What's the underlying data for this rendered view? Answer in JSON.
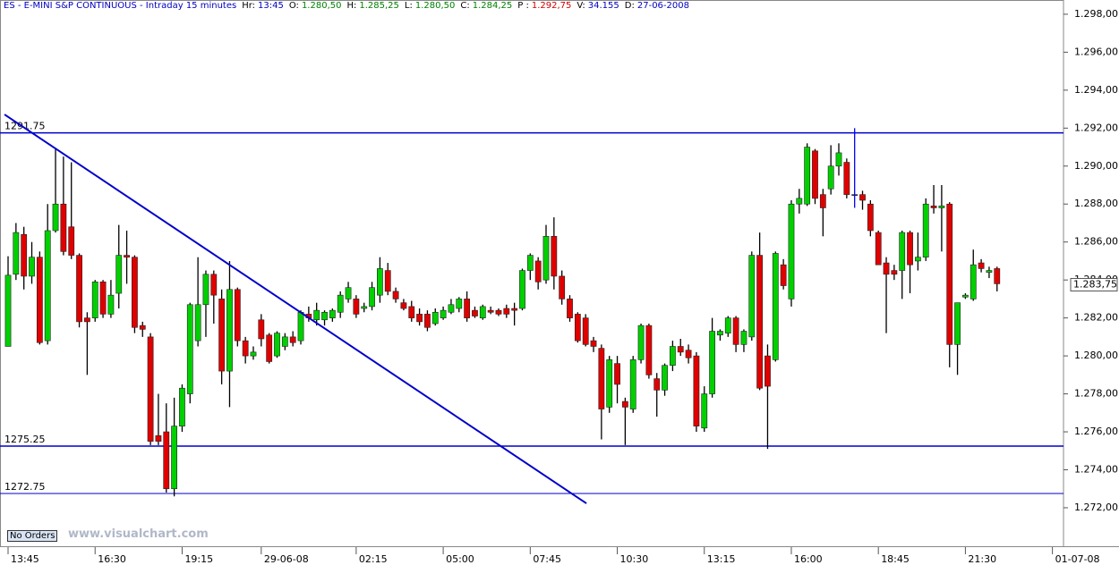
{
  "header": {
    "title": "ES - E-MINI S&P CONTINUOUS - Intraday 15 minutes",
    "fields": [
      {
        "label": "Hr:",
        "value": "13:45"
      },
      {
        "label": "O:",
        "value": "1.280,50"
      },
      {
        "label": "H:",
        "value": "1.285,25"
      },
      {
        "label": "L:",
        "value": "1.280,50"
      },
      {
        "label": "C:",
        "value": "1.284,25"
      },
      {
        "label": "P :",
        "value": "1.292,75"
      },
      {
        "label": "V:",
        "value": "34.155"
      },
      {
        "label": "D:",
        "value": "27-06-2008"
      }
    ]
  },
  "button": "No Orders",
  "watermark": "www.visualchart.com",
  "chart_data": {
    "type": "candlestick",
    "ohlc": [
      [
        1280.5,
        1285.25,
        1280.5,
        1284.25
      ],
      [
        1284.3,
        1287,
        1284,
        1286.5
      ],
      [
        1286.4,
        1286.8,
        1283.5,
        1284.2
      ],
      [
        1284.2,
        1286,
        1283.8,
        1285.2
      ],
      [
        1285.2,
        1285.5,
        1280.6,
        1280.7
      ],
      [
        1280.8,
        1288,
        1280.6,
        1286.6
      ],
      [
        1286.6,
        1290.9,
        1286.5,
        1288
      ],
      [
        1288,
        1290.5,
        1285.3,
        1285.5
      ],
      [
        1286.8,
        1290.2,
        1285.1,
        1285.3
      ],
      [
        1285.3,
        1285.4,
        1281.5,
        1281.8
      ],
      [
        1282,
        1282.3,
        1279,
        1281.8
      ],
      [
        1282,
        1284,
        1281.8,
        1283.9
      ],
      [
        1283.9,
        1284,
        1282,
        1282.2
      ],
      [
        1282.2,
        1284,
        1282,
        1283.2
      ],
      [
        1283.3,
        1286.9,
        1282.5,
        1285.3
      ],
      [
        1285.3,
        1286.6,
        1283.8,
        1285.2
      ],
      [
        1285.2,
        1285.3,
        1281.2,
        1281.5
      ],
      [
        1281.6,
        1281.8,
        1281,
        1281.4
      ],
      [
        1281,
        1281.2,
        1275.3,
        1275.5
      ],
      [
        1275.8,
        1278,
        1275.3,
        1275.5
      ],
      [
        1276,
        1277.5,
        1272.8,
        1273
      ],
      [
        1273,
        1277.8,
        1272.6,
        1276.3
      ],
      [
        1276.3,
        1278.5,
        1276,
        1278.3
      ],
      [
        1278,
        1282.8,
        1277.5,
        1282.7
      ],
      [
        1280.8,
        1285.2,
        1280.5,
        1282.7
      ],
      [
        1282.7,
        1284.5,
        1281,
        1284.3
      ],
      [
        1284.3,
        1284.5,
        1281.7,
        1283.2
      ],
      [
        1283,
        1283.5,
        1278.5,
        1279.2
      ],
      [
        1279.2,
        1285,
        1277.3,
        1283.5
      ],
      [
        1283.5,
        1283.6,
        1280.5,
        1280.8
      ],
      [
        1280.8,
        1281,
        1279.6,
        1280
      ],
      [
        1280,
        1280.5,
        1279.8,
        1280.2
      ],
      [
        1281.9,
        1282.2,
        1280.5,
        1280.9
      ],
      [
        1281.1,
        1281.2,
        1279.6,
        1279.7
      ],
      [
        1280,
        1281.3,
        1279.9,
        1281.2
      ],
      [
        1280.5,
        1281.2,
        1280.3,
        1281
      ],
      [
        1281,
        1281.3,
        1280.5,
        1280.7
      ],
      [
        1280.8,
        1282.4,
        1280.6,
        1282.3
      ],
      [
        1282.2,
        1282.6,
        1281.8,
        1282
      ],
      [
        1281.9,
        1282.8,
        1281.6,
        1282.4
      ],
      [
        1281.9,
        1282.4,
        1281.6,
        1282.3
      ],
      [
        1282,
        1282.5,
        1281.8,
        1282.4
      ],
      [
        1282.3,
        1283.4,
        1282,
        1283.2
      ],
      [
        1283,
        1283.9,
        1282.8,
        1283.6
      ],
      [
        1283,
        1283.2,
        1282,
        1282.2
      ],
      [
        1282.5,
        1282.8,
        1282.3,
        1282.6
      ],
      [
        1282.6,
        1283.9,
        1282.4,
        1283.6
      ],
      [
        1283.2,
        1285.2,
        1282.8,
        1284.6
      ],
      [
        1284.5,
        1284.9,
        1283.2,
        1283.4
      ],
      [
        1283.4,
        1283.6,
        1282.8,
        1283
      ],
      [
        1282.8,
        1283,
        1282.4,
        1282.5
      ],
      [
        1282.6,
        1282.9,
        1281.8,
        1282
      ],
      [
        1282.2,
        1282.5,
        1281.6,
        1281.8
      ],
      [
        1282.2,
        1282.4,
        1281.3,
        1281.5
      ],
      [
        1281.7,
        1282.5,
        1281.6,
        1282.3
      ],
      [
        1282,
        1282.6,
        1281.9,
        1282.4
      ],
      [
        1282.3,
        1283,
        1282.2,
        1282.7
      ],
      [
        1282.5,
        1283.1,
        1282.3,
        1283
      ],
      [
        1283,
        1283.4,
        1281.8,
        1282
      ],
      [
        1282.4,
        1282.6,
        1282,
        1282.1
      ],
      [
        1282,
        1282.7,
        1281.9,
        1282.6
      ],
      [
        1282.4,
        1282.6,
        1282.2,
        1282.3
      ],
      [
        1282.4,
        1282.5,
        1282.1,
        1282.2
      ],
      [
        1282.5,
        1282.7,
        1282,
        1282.2
      ],
      [
        1282.5,
        1282.8,
        1281.6,
        1282.4
      ],
      [
        1282.5,
        1284.6,
        1282.4,
        1284.5
      ],
      [
        1284.5,
        1285.4,
        1284,
        1285.3
      ],
      [
        1285,
        1285.2,
        1283.5,
        1283.9
      ],
      [
        1284,
        1286.9,
        1283.8,
        1286.3
      ],
      [
        1286.3,
        1287.3,
        1283.5,
        1284.2
      ],
      [
        1284.2,
        1284.5,
        1282.7,
        1283
      ],
      [
        1283,
        1283.2,
        1281.8,
        1282
      ],
      [
        1282.2,
        1282.3,
        1280.7,
        1280.8
      ],
      [
        1282,
        1282.2,
        1280.5,
        1280.6
      ],
      [
        1280.8,
        1281,
        1280.2,
        1280.5
      ],
      [
        1280.4,
        1280.6,
        1275.6,
        1277.2
      ],
      [
        1277.3,
        1280,
        1277,
        1279.8
      ],
      [
        1279.6,
        1280,
        1277.5,
        1278.5
      ],
      [
        1277.6,
        1277.8,
        1275.3,
        1277.3
      ],
      [
        1277.2,
        1280,
        1277,
        1279.8
      ],
      [
        1279.8,
        1281.7,
        1279.6,
        1281.6
      ],
      [
        1281.6,
        1281.7,
        1278.8,
        1279
      ],
      [
        1278.8,
        1279.1,
        1276.8,
        1278.2
      ],
      [
        1278.2,
        1279.6,
        1277.9,
        1279.5
      ],
      [
        1279.5,
        1280.8,
        1279.2,
        1280.5
      ],
      [
        1280.5,
        1280.9,
        1280,
        1280.2
      ],
      [
        1280.3,
        1280.6,
        1279.6,
        1279.9
      ],
      [
        1280,
        1280.2,
        1276,
        1276.3
      ],
      [
        1276.2,
        1278.4,
        1276,
        1278
      ],
      [
        1278,
        1282,
        1277.8,
        1281.3
      ],
      [
        1281.1,
        1281.4,
        1280.8,
        1281.3
      ],
      [
        1281.2,
        1282.1,
        1281,
        1282
      ],
      [
        1282,
        1282.1,
        1280.2,
        1280.6
      ],
      [
        1280.6,
        1281.4,
        1280.2,
        1281.3
      ],
      [
        1281,
        1285.5,
        1280.8,
        1285.3
      ],
      [
        1285.3,
        1286.5,
        1278.2,
        1278.3
      ],
      [
        1280,
        1280.6,
        1275.1,
        1278.4
      ],
      [
        1279.8,
        1285.5,
        1279.7,
        1285.4
      ],
      [
        1284.8,
        1285.1,
        1283.5,
        1283.7
      ],
      [
        1283,
        1288.2,
        1282.6,
        1288
      ],
      [
        1288,
        1288.8,
        1287.5,
        1288.3
      ],
      [
        1288,
        1291.2,
        1287.9,
        1291
      ],
      [
        1290.8,
        1290.9,
        1288,
        1288.3
      ],
      [
        1288.5,
        1288.8,
        1286.3,
        1287.8
      ],
      [
        1288.8,
        1291.1,
        1288.5,
        1290
      ],
      [
        1290,
        1291.2,
        1289.5,
        1290.7
      ],
      [
        1290.2,
        1290.4,
        1288.3,
        1288.5
      ],
      [
        1288.5,
        1292,
        1287.8,
        1288.5
      ],
      [
        1288.5,
        1288.7,
        1287.7,
        1288.2
      ],
      [
        1288,
        1288.2,
        1286.3,
        1286.6
      ],
      [
        1286.5,
        1286.6,
        1284.8,
        1284.8
      ],
      [
        1284.9,
        1285.2,
        1281.2,
        1284.3
      ],
      [
        1284.5,
        1284.8,
        1284,
        1284.3
      ],
      [
        1284.5,
        1286.6,
        1283,
        1286.5
      ],
      [
        1286.5,
        1286.6,
        1283.3,
        1284.8
      ],
      [
        1285,
        1286.5,
        1284.5,
        1285.2
      ],
      [
        1285.2,
        1288.3,
        1285,
        1288
      ],
      [
        1287.9,
        1289,
        1287.5,
        1287.8
      ],
      [
        1287.8,
        1289,
        1285.5,
        1287.9
      ],
      [
        1288,
        1288.1,
        1279.4,
        1280.6
      ],
      [
        1280.6,
        1282.8,
        1279,
        1282.8
      ],
      [
        1283.1,
        1283.3,
        1283,
        1283.2
      ],
      [
        1283,
        1285.6,
        1282.9,
        1284.8
      ],
      [
        1284.9,
        1285.1,
        1284.4,
        1284.6
      ],
      [
        1284.4,
        1284.7,
        1284.1,
        1284.5
      ],
      [
        1284.6,
        1284.7,
        1283.4,
        1283.8
      ]
    ],
    "up_color": "#00d000",
    "down_color": "#e00000",
    "flat_color": "#0000ff",
    "hlines": [
      1291.75,
      1275.25,
      1272.75
    ],
    "line_color": "#0000cc",
    "trendline": {
      "x": [
        -0.45,
        73.1
      ],
      "y": [
        1292.72,
        1272.23
      ]
    },
    "last_price": {
      "value": 1283.75,
      "label": "1.283,75"
    },
    "xlim": [
      -1.02,
      133.4
    ],
    "ylim": [
      1270.02,
      1298.75
    ],
    "xticks": [
      {
        "value": 0,
        "label": "13:45"
      },
      {
        "value": 11,
        "label": "16:30"
      },
      {
        "value": 22,
        "label": "19:15"
      },
      {
        "value": 32,
        "label": "29-06-08"
      },
      {
        "value": 44,
        "label": "02:15"
      },
      {
        "value": 55,
        "label": "05:00"
      },
      {
        "value": 66,
        "label": "07:45"
      },
      {
        "value": 77,
        "label": "10:30"
      },
      {
        "value": 88,
        "label": "13:15"
      },
      {
        "value": 99,
        "label": "16:00"
      },
      {
        "value": 110,
        "label": "18:45"
      },
      {
        "value": 121,
        "label": "21:30"
      },
      {
        "value": 132,
        "label": "01-07-08"
      }
    ],
    "yticks": [
      {
        "value": 1272,
        "label": "1.272,00"
      },
      {
        "value": 1274,
        "label": "1.274,00"
      },
      {
        "value": 1276,
        "label": "1.276,00"
      },
      {
        "value": 1278,
        "label": "1.278,00"
      },
      {
        "value": 1280,
        "label": "1.280,00"
      },
      {
        "value": 1282,
        "label": "1.282,00"
      },
      {
        "value": 1284,
        "label": "1.284,00"
      },
      {
        "value": 1286,
        "label": "1.286,00"
      },
      {
        "value": 1288,
        "label": "1.288,00"
      },
      {
        "value": 1290,
        "label": "1.290,00"
      },
      {
        "value": 1292,
        "label": "1.292,00"
      },
      {
        "value": 1294,
        "label": "1.294,00"
      },
      {
        "value": 1296,
        "label": "1.296,00"
      },
      {
        "value": 1298,
        "label": "1.298,00"
      }
    ]
  }
}
